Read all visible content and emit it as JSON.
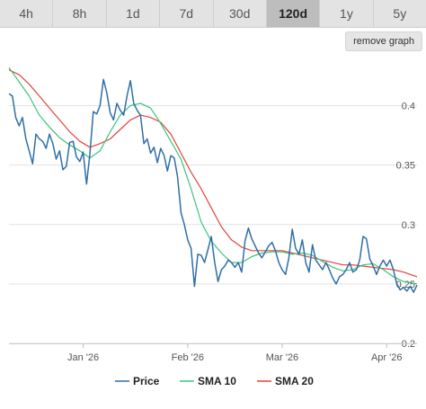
{
  "range_tabs": [
    {
      "label": "4h",
      "active": false
    },
    {
      "label": "8h",
      "active": false
    },
    {
      "label": "1d",
      "active": false
    },
    {
      "label": "7d",
      "active": false
    },
    {
      "label": "30d",
      "active": false
    },
    {
      "label": "120d",
      "active": true
    },
    {
      "label": "1y",
      "active": false
    },
    {
      "label": "5y",
      "active": false
    }
  ],
  "remove_graph_label": "remove graph",
  "chart_data": {
    "type": "line",
    "grid": true,
    "ylim": [
      0.2,
      0.445
    ],
    "y_ticks": [
      0.2,
      0.25,
      0.3,
      0.35,
      0.4
    ],
    "y_tick_labels": [
      "0.2",
      "0.25",
      "0.3",
      "0.35",
      "0.4"
    ],
    "x_ticks": [
      {
        "x": "2026-01-01",
        "label": "Jan '26"
      },
      {
        "x": "2026-02-01",
        "label": "Feb '26"
      },
      {
        "x": "2026-03-01",
        "label": "Mar '26"
      },
      {
        "x": "2026-04-01",
        "label": "Apr '26"
      }
    ],
    "xlim": [
      "2025-12-10",
      "2026-04-10"
    ],
    "legend_position": "bottom",
    "series": [
      {
        "name": "Price",
        "color": "#2f6fa7",
        "points": [
          [
            "2025-12-10",
            0.41
          ],
          [
            "2025-12-11",
            0.408
          ],
          [
            "2025-12-12",
            0.39
          ],
          [
            "2025-12-13",
            0.383
          ],
          [
            "2025-12-14",
            0.39
          ],
          [
            "2025-12-15",
            0.372
          ],
          [
            "2025-12-16",
            0.362
          ],
          [
            "2025-12-17",
            0.351
          ],
          [
            "2025-12-18",
            0.376
          ],
          [
            "2025-12-19",
            0.372
          ],
          [
            "2025-12-20",
            0.37
          ],
          [
            "2025-12-21",
            0.364
          ],
          [
            "2025-12-22",
            0.376
          ],
          [
            "2025-12-23",
            0.368
          ],
          [
            "2025-12-24",
            0.355
          ],
          [
            "2025-12-25",
            0.362
          ],
          [
            "2025-12-26",
            0.346
          ],
          [
            "2025-12-27",
            0.349
          ],
          [
            "2025-12-28",
            0.369
          ],
          [
            "2025-12-29",
            0.37
          ],
          [
            "2025-12-30",
            0.357
          ],
          [
            "2025-12-31",
            0.353
          ],
          [
            "2026-01-01",
            0.361
          ],
          [
            "2026-01-02",
            0.334
          ],
          [
            "2026-01-03",
            0.359
          ],
          [
            "2026-01-04",
            0.395
          ],
          [
            "2026-01-05",
            0.393
          ],
          [
            "2026-01-06",
            0.4
          ],
          [
            "2026-01-07",
            0.422
          ],
          [
            "2026-01-08",
            0.411
          ],
          [
            "2026-01-09",
            0.394
          ],
          [
            "2026-01-10",
            0.388
          ],
          [
            "2026-01-11",
            0.402
          ],
          [
            "2026-01-12",
            0.396
          ],
          [
            "2026-01-13",
            0.392
          ],
          [
            "2026-01-14",
            0.408
          ],
          [
            "2026-01-15",
            0.421
          ],
          [
            "2026-01-16",
            0.402
          ],
          [
            "2026-01-17",
            0.396
          ],
          [
            "2026-01-18",
            0.392
          ],
          [
            "2026-01-19",
            0.368
          ],
          [
            "2026-01-20",
            0.372
          ],
          [
            "2026-01-21",
            0.36
          ],
          [
            "2026-01-22",
            0.365
          ],
          [
            "2026-01-23",
            0.352
          ],
          [
            "2026-01-24",
            0.364
          ],
          [
            "2026-01-25",
            0.358
          ],
          [
            "2026-01-26",
            0.345
          ],
          [
            "2026-01-27",
            0.358
          ],
          [
            "2026-01-28",
            0.356
          ],
          [
            "2026-01-29",
            0.34
          ],
          [
            "2026-01-30",
            0.31
          ],
          [
            "2026-01-31",
            0.3
          ],
          [
            "2026-02-01",
            0.287
          ],
          [
            "2026-02-02",
            0.28
          ],
          [
            "2026-02-03",
            0.248
          ],
          [
            "2026-02-04",
            0.275
          ],
          [
            "2026-02-05",
            0.274
          ],
          [
            "2026-02-06",
            0.268
          ],
          [
            "2026-02-07",
            0.279
          ],
          [
            "2026-02-08",
            0.29
          ],
          [
            "2026-02-09",
            0.268
          ],
          [
            "2026-02-10",
            0.252
          ],
          [
            "2026-02-11",
            0.262
          ],
          [
            "2026-02-12",
            0.265
          ],
          [
            "2026-02-13",
            0.27
          ],
          [
            "2026-02-14",
            0.268
          ],
          [
            "2026-02-15",
            0.264
          ],
          [
            "2026-02-16",
            0.268
          ],
          [
            "2026-02-17",
            0.26
          ],
          [
            "2026-02-18",
            0.286
          ],
          [
            "2026-02-19",
            0.297
          ],
          [
            "2026-02-20",
            0.288
          ],
          [
            "2026-02-21",
            0.282
          ],
          [
            "2026-02-22",
            0.276
          ],
          [
            "2026-02-23",
            0.272
          ],
          [
            "2026-02-24",
            0.277
          ],
          [
            "2026-02-25",
            0.282
          ],
          [
            "2026-02-26",
            0.285
          ],
          [
            "2026-02-27",
            0.278
          ],
          [
            "2026-02-28",
            0.268
          ],
          [
            "2026-03-01",
            0.262
          ],
          [
            "2026-03-02",
            0.258
          ],
          [
            "2026-03-03",
            0.272
          ],
          [
            "2026-03-04",
            0.296
          ],
          [
            "2026-03-05",
            0.28
          ],
          [
            "2026-03-06",
            0.275
          ],
          [
            "2026-03-07",
            0.287
          ],
          [
            "2026-03-08",
            0.268
          ],
          [
            "2026-03-09",
            0.26
          ],
          [
            "2026-03-10",
            0.283
          ],
          [
            "2026-03-11",
            0.27
          ],
          [
            "2026-03-12",
            0.266
          ],
          [
            "2026-03-13",
            0.262
          ],
          [
            "2026-03-14",
            0.268
          ],
          [
            "2026-03-15",
            0.262
          ],
          [
            "2026-03-16",
            0.255
          ],
          [
            "2026-03-17",
            0.25
          ],
          [
            "2026-03-18",
            0.256
          ],
          [
            "2026-03-19",
            0.258
          ],
          [
            "2026-03-20",
            0.262
          ],
          [
            "2026-03-21",
            0.268
          ],
          [
            "2026-03-22",
            0.26
          ],
          [
            "2026-03-23",
            0.262
          ],
          [
            "2026-03-24",
            0.27
          ],
          [
            "2026-03-25",
            0.29
          ],
          [
            "2026-03-26",
            0.288
          ],
          [
            "2026-03-27",
            0.271
          ],
          [
            "2026-03-28",
            0.265
          ],
          [
            "2026-03-29",
            0.258
          ],
          [
            "2026-03-30",
            0.265
          ],
          [
            "2026-03-31",
            0.27
          ],
          [
            "2026-04-01",
            0.265
          ],
          [
            "2026-04-02",
            0.27
          ],
          [
            "2026-04-03",
            0.262
          ],
          [
            "2026-04-04",
            0.25
          ],
          [
            "2026-04-05",
            0.245
          ],
          [
            "2026-04-06",
            0.247
          ],
          [
            "2026-04-07",
            0.244
          ],
          [
            "2026-04-08",
            0.248
          ],
          [
            "2026-04-09",
            0.243
          ],
          [
            "2026-04-10",
            0.249
          ]
        ]
      },
      {
        "name": "SMA 10",
        "color": "#3cc47a",
        "points": [
          [
            "2025-12-10",
            0.432
          ],
          [
            "2025-12-13",
            0.42
          ],
          [
            "2025-12-16",
            0.408
          ],
          [
            "2025-12-19",
            0.392
          ],
          [
            "2025-12-22",
            0.382
          ],
          [
            "2025-12-25",
            0.373
          ],
          [
            "2025-12-28",
            0.367
          ],
          [
            "2025-12-31",
            0.362
          ],
          [
            "2026-01-03",
            0.356
          ],
          [
            "2026-01-06",
            0.362
          ],
          [
            "2026-01-09",
            0.378
          ],
          [
            "2026-01-12",
            0.392
          ],
          [
            "2026-01-15",
            0.4
          ],
          [
            "2026-01-18",
            0.402
          ],
          [
            "2026-01-21",
            0.398
          ],
          [
            "2026-01-24",
            0.385
          ],
          [
            "2026-01-27",
            0.37
          ],
          [
            "2026-01-30",
            0.355
          ],
          [
            "2026-02-02",
            0.33
          ],
          [
            "2026-02-05",
            0.302
          ],
          [
            "2026-02-08",
            0.286
          ],
          [
            "2026-02-11",
            0.276
          ],
          [
            "2026-02-14",
            0.268
          ],
          [
            "2026-02-17",
            0.268
          ],
          [
            "2026-02-20",
            0.273
          ],
          [
            "2026-02-23",
            0.276
          ],
          [
            "2026-02-26",
            0.277
          ],
          [
            "2026-03-01",
            0.277
          ],
          [
            "2026-03-04",
            0.275
          ],
          [
            "2026-03-07",
            0.276
          ],
          [
            "2026-03-10",
            0.274
          ],
          [
            "2026-03-13",
            0.269
          ],
          [
            "2026-03-16",
            0.264
          ],
          [
            "2026-03-19",
            0.261
          ],
          [
            "2026-03-22",
            0.262
          ],
          [
            "2026-03-25",
            0.266
          ],
          [
            "2026-03-28",
            0.267
          ],
          [
            "2026-03-31",
            0.262
          ],
          [
            "2026-04-03",
            0.256
          ],
          [
            "2026-04-06",
            0.252
          ],
          [
            "2026-04-10",
            0.25
          ]
        ]
      },
      {
        "name": "SMA 20",
        "color": "#e0443b",
        "points": [
          [
            "2025-12-10",
            0.43
          ],
          [
            "2025-12-13",
            0.426
          ],
          [
            "2025-12-16",
            0.418
          ],
          [
            "2025-12-19",
            0.408
          ],
          [
            "2025-12-22",
            0.398
          ],
          [
            "2025-12-25",
            0.388
          ],
          [
            "2025-12-28",
            0.378
          ],
          [
            "2025-12-31",
            0.37
          ],
          [
            "2026-01-03",
            0.365
          ],
          [
            "2026-01-06",
            0.368
          ],
          [
            "2026-01-09",
            0.372
          ],
          [
            "2026-01-12",
            0.38
          ],
          [
            "2026-01-15",
            0.388
          ],
          [
            "2026-01-18",
            0.392
          ],
          [
            "2026-01-21",
            0.39
          ],
          [
            "2026-01-24",
            0.386
          ],
          [
            "2026-01-27",
            0.376
          ],
          [
            "2026-01-30",
            0.36
          ],
          [
            "2026-02-02",
            0.344
          ],
          [
            "2026-02-05",
            0.33
          ],
          [
            "2026-02-08",
            0.314
          ],
          [
            "2026-02-11",
            0.298
          ],
          [
            "2026-02-14",
            0.287
          ],
          [
            "2026-02-17",
            0.281
          ],
          [
            "2026-02-20",
            0.278
          ],
          [
            "2026-02-23",
            0.278
          ],
          [
            "2026-02-26",
            0.278
          ],
          [
            "2026-03-01",
            0.278
          ],
          [
            "2026-03-04",
            0.276
          ],
          [
            "2026-03-07",
            0.274
          ],
          [
            "2026-03-10",
            0.272
          ],
          [
            "2026-03-13",
            0.27
          ],
          [
            "2026-03-16",
            0.268
          ],
          [
            "2026-03-19",
            0.266
          ],
          [
            "2026-03-22",
            0.266
          ],
          [
            "2026-03-25",
            0.265
          ],
          [
            "2026-03-28",
            0.264
          ],
          [
            "2026-03-31",
            0.263
          ],
          [
            "2026-04-03",
            0.262
          ],
          [
            "2026-04-06",
            0.26
          ],
          [
            "2026-04-10",
            0.256
          ]
        ]
      }
    ]
  }
}
